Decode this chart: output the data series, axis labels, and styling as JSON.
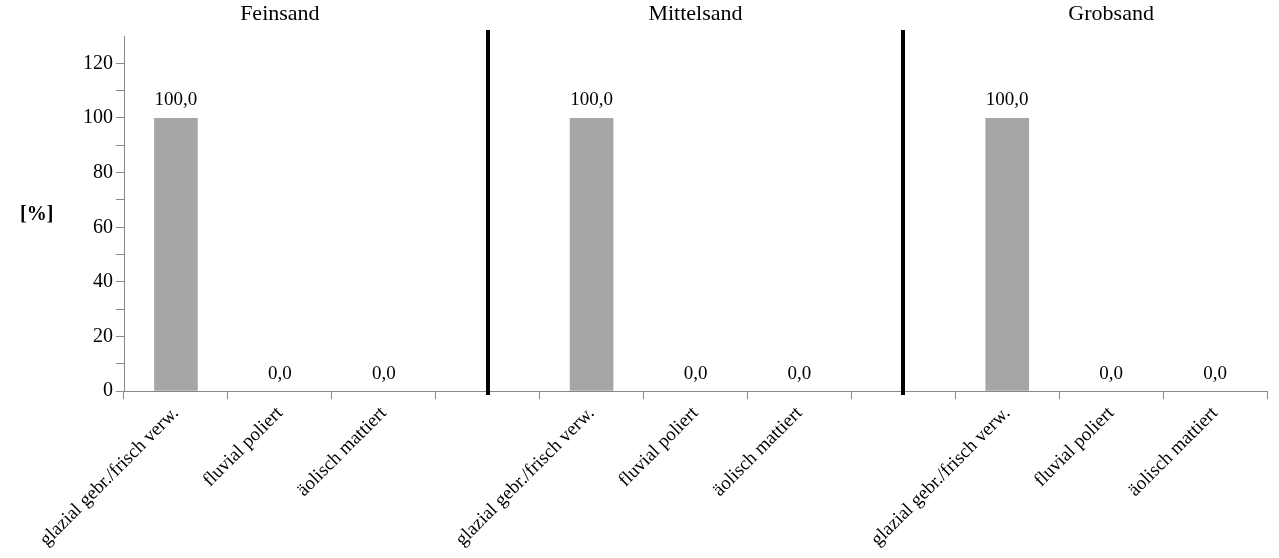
{
  "chart_data": {
    "type": "bar",
    "categories": [
      "glazial gebr./frisch verw.",
      "fluvial poliert",
      "äolisch mattiert",
      null,
      "glazial gebr./frisch verw.",
      "fluvial poliert",
      "äolisch mattiert",
      null,
      "glazial gebr./frisch verw.",
      "fluvial poliert",
      "äolisch mattiert"
    ],
    "values": [
      100,
      0,
      0,
      null,
      100,
      0,
      0,
      null,
      100,
      0,
      0
    ],
    "value_labels": [
      "100,0",
      "0,0",
      "0,0",
      null,
      "100,0",
      "0,0",
      "0,0",
      null,
      "100,0",
      "0,0",
      "0,0"
    ],
    "color": "#a6a6a6",
    "ylabel": "[%]",
    "ylim": [
      0,
      130
    ],
    "yticks": [
      0,
      {
        "value": 10,
        "label": null
      },
      20,
      {
        "value": 30,
        "label": null
      },
      40,
      {
        "value": 50,
        "label": null
      },
      60,
      {
        "value": 70,
        "label": null
      },
      80,
      {
        "value": 90,
        "label": null
      },
      100,
      {
        "value": 110,
        "label": null
      },
      120
    ],
    "annotations": [
      "Feinsand",
      "Mittelsand",
      "Grobsand"
    ],
    "legend": false
  }
}
